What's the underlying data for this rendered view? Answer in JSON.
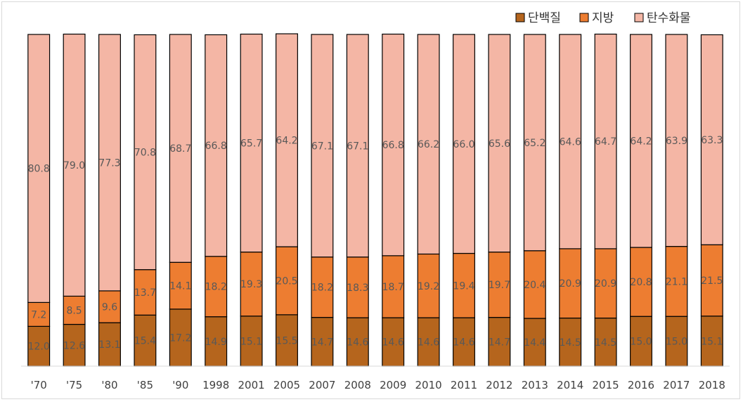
{
  "chart_data": {
    "type": "bar",
    "stacked": true,
    "title": "",
    "xlabel": "",
    "ylabel": "",
    "ylim": [
      0,
      100
    ],
    "grid": false,
    "legend_position": "top-right",
    "categories": [
      "'70",
      "'75",
      "'80",
      "'85",
      "'90",
      "1998",
      "2001",
      "2005",
      "2007",
      "2008",
      "2009",
      "2010",
      "2011",
      "2012",
      "2013",
      "2014",
      "2015",
      "2016",
      "2017",
      "2018"
    ],
    "series": [
      {
        "name": "단백질",
        "color": "#b5651d",
        "values": [
          12.0,
          12.6,
          13.1,
          15.4,
          17.2,
          14.9,
          15.1,
          15.5,
          14.7,
          14.6,
          14.6,
          14.6,
          14.6,
          14.7,
          14.4,
          14.5,
          14.5,
          15.0,
          15.0,
          15.1
        ],
        "labels": [
          "12.0",
          "12.6",
          "13.1",
          "15.4",
          "17.2",
          "14.9",
          "15.1",
          "15.5",
          "14.7",
          "14.6",
          "14.6",
          "14.6",
          "14.6",
          "14.7",
          "14.4",
          "14.5",
          "14.5",
          "15.0",
          "15.0",
          "15.1"
        ]
      },
      {
        "name": "지방",
        "color": "#ed7d31",
        "values": [
          7.2,
          8.5,
          9.6,
          13.7,
          14.1,
          18.2,
          19.3,
          20.5,
          18.2,
          18.3,
          18.7,
          19.2,
          19.4,
          19.7,
          20.4,
          20.9,
          20.9,
          20.8,
          21.1,
          21.5
        ],
        "labels": [
          "7.2",
          "8.5",
          "9.6",
          "13.7",
          "14.1",
          "18.2",
          "19.3",
          "20.5",
          "18.2",
          "18.3",
          "18.7",
          "19.2",
          "19.4",
          "19.7",
          "20.4",
          "20.9",
          "20.9",
          "20.8",
          "21.1",
          "21.5"
        ]
      },
      {
        "name": "탄수화물",
        "color": "#f4b6a5",
        "values": [
          80.8,
          79.0,
          77.3,
          70.8,
          68.7,
          66.8,
          65.7,
          64.2,
          67.1,
          67.1,
          66.8,
          66.2,
          66.0,
          65.6,
          65.2,
          64.6,
          64.7,
          64.2,
          63.9,
          63.3
        ],
        "labels": [
          "80.8",
          "79.0",
          "77.3",
          "70.8",
          "68.7",
          "66.8",
          "65.7",
          "64.2",
          "67.1",
          "67.1",
          "66.8",
          "66.2",
          "66.0",
          "65.6",
          "65.2",
          "64.6",
          "64.7",
          "64.2",
          "63.9",
          "63.3"
        ]
      }
    ]
  }
}
